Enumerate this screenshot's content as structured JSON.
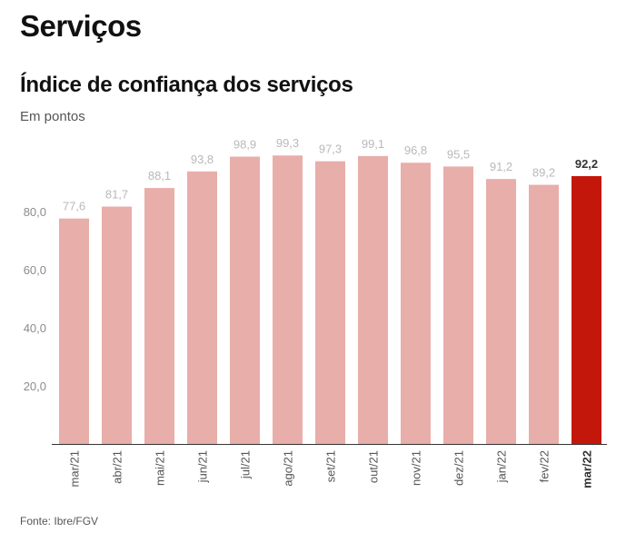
{
  "header": {
    "title": "Serviços"
  },
  "chart": {
    "title": "Índice de confiança dos serviços",
    "subtitle": "Em pontos",
    "source": "Fonte: Ibre/FGV"
  },
  "colors": {
    "bar_default": "#e8aeaa",
    "bar_highlight": "#c4170c",
    "label_default": "#b9b9b9",
    "label_highlight": "#333333",
    "axis": "#333333",
    "tick_label": "#8c8c8c"
  },
  "chart_data": {
    "type": "bar",
    "categories": [
      "mar/21",
      "abr/21",
      "mai/21",
      "jun/21",
      "jul/21",
      "ago/21",
      "set/21",
      "out/21",
      "nov/21",
      "dez/21",
      "jan/22",
      "fev/22",
      "mar/22"
    ],
    "values": [
      77.6,
      81.7,
      88.1,
      93.8,
      98.9,
      99.3,
      97.3,
      99.1,
      96.8,
      95.5,
      91.2,
      89.2,
      92.2
    ],
    "value_labels": [
      "77,6",
      "81,7",
      "88,1",
      "93,8",
      "98,9",
      "99,3",
      "97,3",
      "99,1",
      "96,8",
      "95,5",
      "91,2",
      "89,2",
      "92,2"
    ],
    "highlight_index": 12,
    "yticks": [
      20,
      40,
      60,
      80
    ],
    "ytick_labels": [
      "20,0",
      "40,0",
      "60,0",
      "80,0"
    ],
    "ylim": [
      0,
      100
    ],
    "title": "Índice de confiança dos serviços",
    "xlabel": "",
    "ylabel": "",
    "grid": false
  }
}
